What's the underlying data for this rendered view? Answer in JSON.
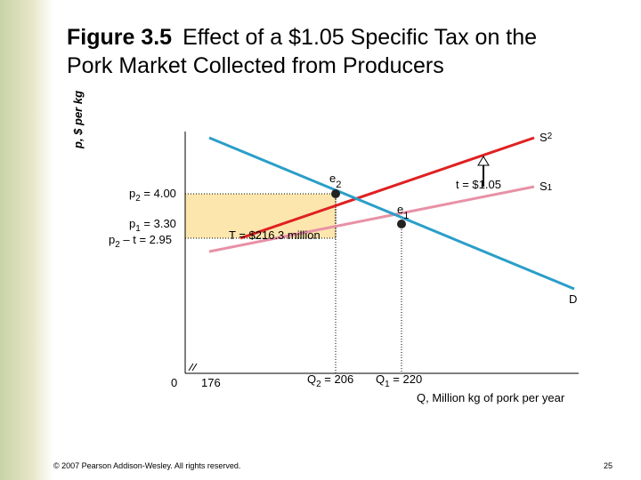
{
  "title": {
    "figure": "Figure 3.5",
    "line1": "Effect of a $1.05 Specific Tax on the",
    "line2": "Pork Market Collected from Producers"
  },
  "axes": {
    "y_label": "p, $ per kg",
    "x_label": "Q, Million kg of pork per year",
    "origin": "0",
    "x_break_value": "176"
  },
  "curves": {
    "s2": {
      "base": "S",
      "sub": "2"
    },
    "s1": {
      "base": "S",
      "sub": "1"
    },
    "d": "D"
  },
  "points": {
    "e2": {
      "base": "e",
      "sub": "2"
    },
    "e1": {
      "base": "e",
      "sub": "1"
    }
  },
  "tax": "t  = $1.05",
  "revenue": "T = $216.3 million",
  "prices": {
    "p2": {
      "base": "p",
      "sub": "2",
      "rest": " = 4.00"
    },
    "p1": {
      "base": "p",
      "sub": "1",
      "rest": " = 3.30"
    },
    "p2t": {
      "base": "p",
      "sub": "2",
      "rest": " – t  = 2.95"
    }
  },
  "quantities": {
    "q2": {
      "base": "Q",
      "sub": "2",
      "rest": " = 206"
    },
    "q1": {
      "base": "Q",
      "sub": "1",
      "rest": " = 220"
    }
  },
  "footer": {
    "copyright": "© 2007 Pearson Addison-Wesley. All rights reserved.",
    "page": "25"
  }
}
